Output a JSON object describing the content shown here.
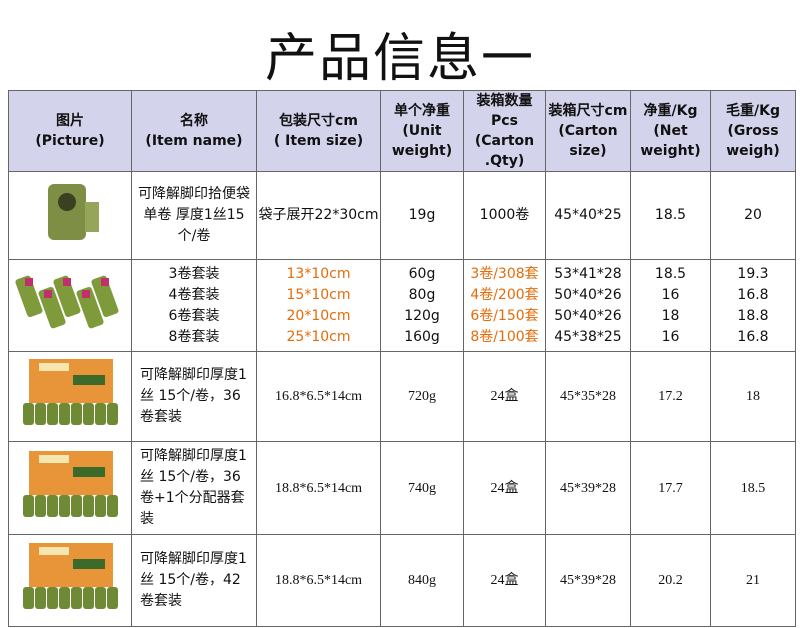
{
  "header": {
    "title": "产品信息一"
  },
  "table": {
    "columns": [
      [
        "图片",
        "(Picture)"
      ],
      [
        "名称",
        "(Item name)"
      ],
      [
        "包装尺寸cm",
        "( Item size)"
      ],
      [
        "单个净重",
        "(Unit",
        "weight)"
      ],
      [
        "装箱数量",
        "Pcs",
        "(Carton",
        ".Qty)"
      ],
      [
        "装箱尺寸cm",
        "(Carton",
        "size)"
      ],
      [
        "净重/Kg",
        "(Net",
        "weight)"
      ],
      [
        "毛重/Kg",
        "(Gross",
        "weigh)"
      ]
    ],
    "rows": [
      [
        [
          "可降解脚印拾便袋单卷 厚度1丝15个/卷"
        ],
        [
          "袋子展开22*30cm"
        ],
        [
          "19g"
        ],
        [
          "1000卷"
        ],
        [
          "45*40*25"
        ],
        [
          "18.5"
        ],
        [
          "20"
        ]
      ],
      [
        [
          "3卷套装",
          "4卷套装",
          "6卷套装",
          "8卷套装"
        ],
        [
          "13*10cm",
          "15*10cm",
          "20*10cm",
          "25*10cm"
        ],
        [
          "60g",
          "80g",
          "120g",
          "160g"
        ],
        [
          "3卷/308套",
          "4卷/200套",
          "6卷/150套",
          "8卷/100套"
        ],
        [
          "53*41*28",
          "50*40*26",
          "50*40*26",
          "45*38*25"
        ],
        [
          "18.5",
          "16",
          "18",
          "16"
        ],
        [
          "19.3",
          "16.8",
          "18.8",
          "16.8"
        ]
      ],
      [
        [
          "可降解脚印厚度1丝 15个/卷，36卷套装"
        ],
        [
          "16.8*6.5*14cm"
        ],
        [
          "720g"
        ],
        [
          "24盒"
        ],
        [
          "45*35*28"
        ],
        [
          "17.2"
        ],
        [
          "18"
        ]
      ],
      [
        [
          "可降解脚印厚度1丝 15个/卷，36卷+1个分配器套装"
        ],
        [
          "18.8*6.5*14cm"
        ],
        [
          "740g"
        ],
        [
          "24盒"
        ],
        [
          "45*39*28"
        ],
        [
          "17.7"
        ],
        [
          "18.5"
        ]
      ],
      [
        [
          "可降解脚印厚度1丝 15个/卷，42卷套装"
        ],
        [
          "18.8*6.5*14cm"
        ],
        [
          "840g"
        ],
        [
          "24盒"
        ],
        [
          "45*39*28"
        ],
        [
          "20.2"
        ],
        [
          "21"
        ]
      ]
    ]
  }
}
